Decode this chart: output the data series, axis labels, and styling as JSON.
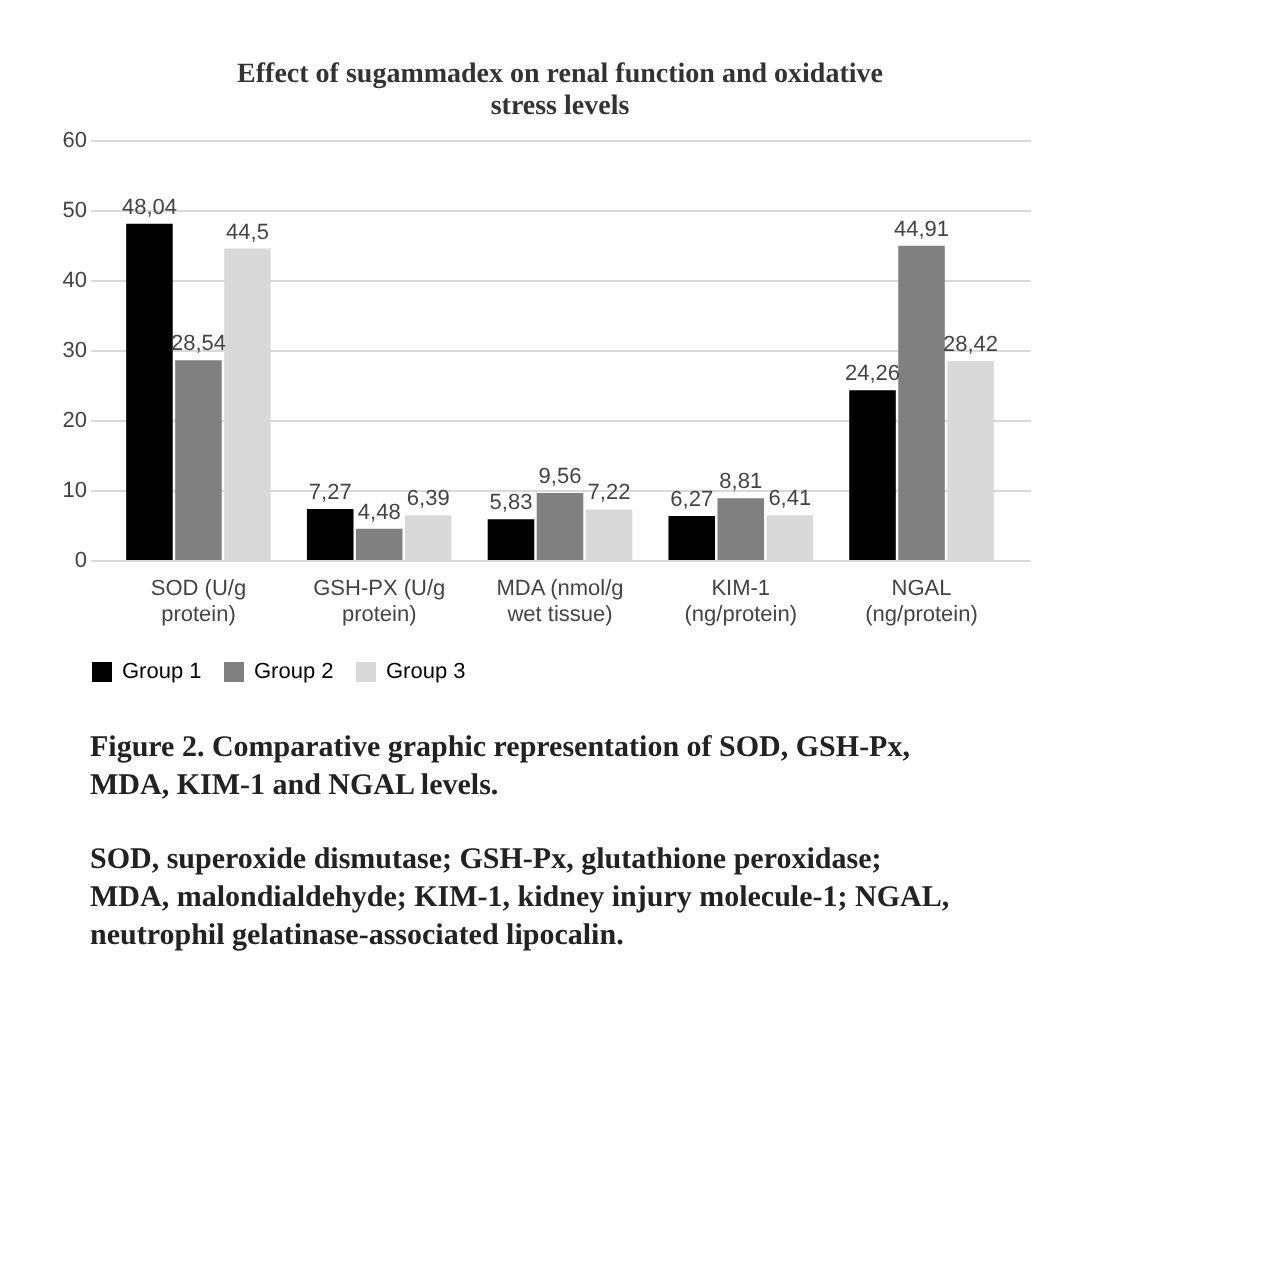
{
  "chart_data": {
    "type": "bar",
    "title": "Effect of sugammadex on renal function and oxidative stress levels",
    "categories": [
      "SOD (U/g protein)",
      "GSH-PX (U/g protein)",
      "MDA (nmol/g wet tissue)",
      "KIM-1 (ng/protein)",
      "NGAL (ng/protein)"
    ],
    "series": [
      {
        "name": "Group 1",
        "color": "#000000",
        "values": [
          48.04,
          7.27,
          5.83,
          6.27,
          24.26
        ],
        "value_labels": [
          "48,04",
          "7,27",
          "5,83",
          "6,27",
          "24,26"
        ]
      },
      {
        "name": "Group 2",
        "color": "#808080",
        "values": [
          28.54,
          4.48,
          9.56,
          8.81,
          44.91
        ],
        "value_labels": [
          "28,54",
          "4,48",
          "9,56",
          "8,81",
          "44,91"
        ]
      },
      {
        "name": "Group 3",
        "color": "#d9d9d9",
        "values": [
          44.5,
          6.39,
          7.22,
          6.41,
          28.42
        ],
        "value_labels": [
          "44,5",
          "6,39",
          "7,22",
          "6,41",
          "28,42"
        ]
      }
    ],
    "ylim": [
      0,
      60
    ],
    "yticks": [
      0,
      10,
      20,
      30,
      40,
      50,
      60
    ],
    "grid": "y",
    "legend": "bottom",
    "annotations": [
      "Figure 2. Comparative graphic representation of SOD, GSH-Px, MDA, KIM-1 and NGAL levels.",
      "SOD, superoxide dismutase; GSH-Px, glutathione peroxidase; MDA, malondialdehyde; KIM-1, kidney injury molecule-1; NGAL, neutrophil gelatinase-associated lipocalin."
    ]
  }
}
